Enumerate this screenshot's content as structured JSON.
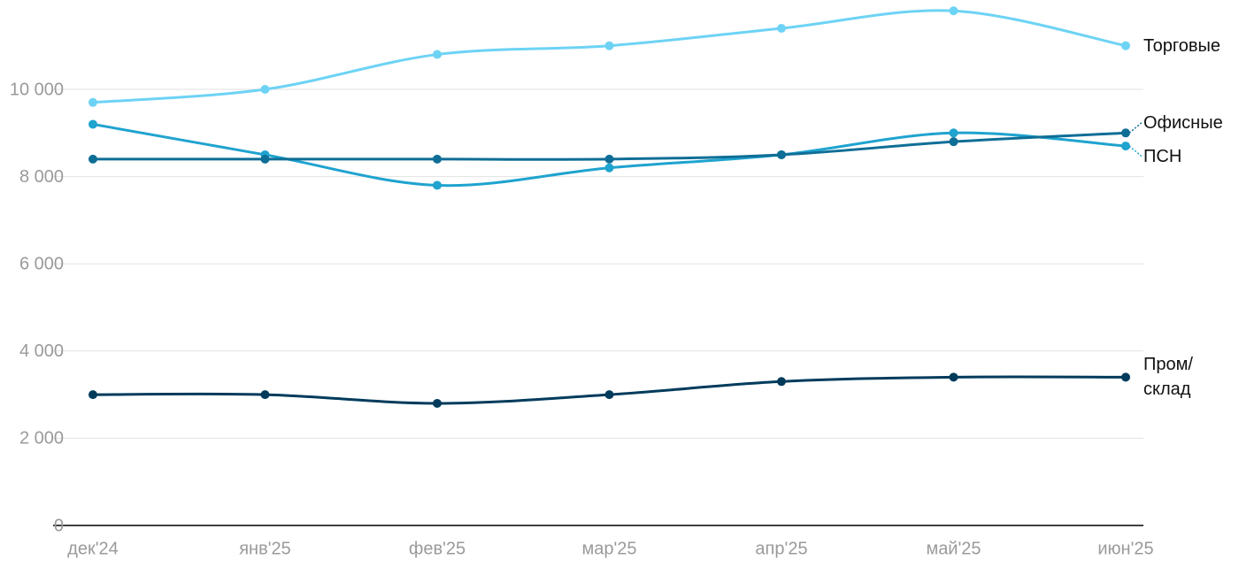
{
  "chart_data": {
    "type": "line",
    "categories": [
      "дек'24",
      "янв'25",
      "фев'25",
      "мар'25",
      "апр'25",
      "май'25",
      "июн'25"
    ],
    "series": [
      {
        "name": "Торговые",
        "color": "#6dd3f5",
        "values": [
          9700,
          10000,
          10800,
          11000,
          11400,
          11800,
          11000
        ]
      },
      {
        "name": "ПСН",
        "color": "#1fa3cf",
        "values": [
          9200,
          8500,
          7800,
          8200,
          8500,
          9000,
          8700
        ]
      },
      {
        "name": "Офисные",
        "color": "#0f6e96",
        "values": [
          8400,
          8400,
          8400,
          8400,
          8500,
          8800,
          9000
        ]
      },
      {
        "name": "Пром/\nсклад",
        "color": "#003b5c",
        "values": [
          3000,
          3000,
          2800,
          3000,
          3300,
          3400,
          3400
        ]
      }
    ],
    "ylim": [
      0,
      12000
    ],
    "yticks": [
      0,
      {
        "value": 2000,
        "label": "2 000"
      },
      {
        "value": 4000,
        "label": "4 000"
      },
      {
        "value": 6000,
        "label": "6 000"
      },
      {
        "value": 8000,
        "label": "8 000"
      },
      {
        "value": 10000,
        "label": "10 000"
      }
    ],
    "grid": true
  }
}
